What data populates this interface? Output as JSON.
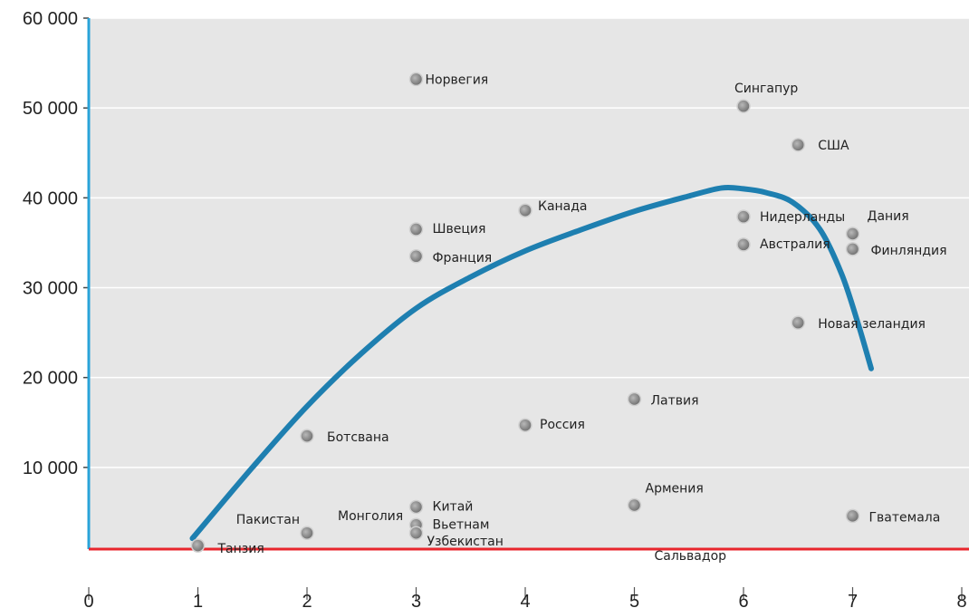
{
  "chart_data": {
    "type": "scatter",
    "title": "",
    "xlabel": "",
    "ylabel": "",
    "xlim": [
      0,
      8
    ],
    "ylim": [
      -1000,
      60000
    ],
    "x_ticks": [
      "0",
      "1",
      "2",
      "3",
      "4",
      "5",
      "6",
      "7",
      "8"
    ],
    "y_ticks": [
      "10 000",
      "20 000",
      "30 000",
      "40 000",
      "50 000",
      "60 000"
    ],
    "grid": true,
    "points": [
      {
        "label": "Норвегия",
        "x": 3,
        "y": 53200
      },
      {
        "label": "Сингапур",
        "x": 6,
        "y": 50200
      },
      {
        "label": "США",
        "x": 6.5,
        "y": 45900
      },
      {
        "label": "Канада",
        "x": 4,
        "y": 38600
      },
      {
        "label": "Нидерланды",
        "x": 6,
        "y": 37900
      },
      {
        "label": "Дания",
        "x": 7,
        "y": 36000
      },
      {
        "label": "Швеция",
        "x": 3,
        "y": 36500
      },
      {
        "label": "Австралия",
        "x": 6,
        "y": 34800
      },
      {
        "label": "Финляндия",
        "x": 7,
        "y": 34300
      },
      {
        "label": "Франция",
        "x": 3,
        "y": 33500
      },
      {
        "label": "Новая зеландия",
        "x": 6.5,
        "y": 26100
      },
      {
        "label": "Латвия",
        "x": 5,
        "y": 17600
      },
      {
        "label": "Россия",
        "x": 4,
        "y": 14700
      },
      {
        "label": "Ботсвана",
        "x": 2,
        "y": 13500
      },
      {
        "label": "Армения",
        "x": 5,
        "y": 5800
      },
      {
        "label": "Китай",
        "x": 3,
        "y": 5600
      },
      {
        "label": "Гватемала",
        "x": 7,
        "y": 4600
      },
      {
        "label": "Вьетнам",
        "x": 3,
        "y": 3600
      },
      {
        "label": "Монголия",
        "x": 2,
        "y": 2700
      },
      {
        "label": "Пакистан",
        "x": 2,
        "y": 2700
      },
      {
        "label": "Узбекистан",
        "x": 3,
        "y": 2700
      },
      {
        "label": "Сальвадор",
        "x": 5,
        "y": 2700
      },
      {
        "label": "Танзия",
        "x": 1,
        "y": 1300
      }
    ],
    "trend_line": {
      "x": [
        0.95,
        1.5,
        2.0,
        2.5,
        3.0,
        3.5,
        4.0,
        4.5,
        5.0,
        5.5,
        5.8,
        6.0,
        6.2,
        6.45,
        6.7,
        6.9,
        7.05,
        7.17
      ],
      "y": [
        2100,
        10000,
        16800,
        22700,
        27700,
        31200,
        34100,
        36400,
        38500,
        40200,
        41100,
        41000,
        40600,
        39500,
        36500,
        31500,
        26000,
        21000
      ]
    },
    "colors": {
      "plot_background": "#e6e6e6",
      "grid": "#ffffff",
      "y_axis": "#29a3d9",
      "x_axis": "#e8262d",
      "trend": "#1e7fb0",
      "marker": "#8c8c8c"
    }
  }
}
